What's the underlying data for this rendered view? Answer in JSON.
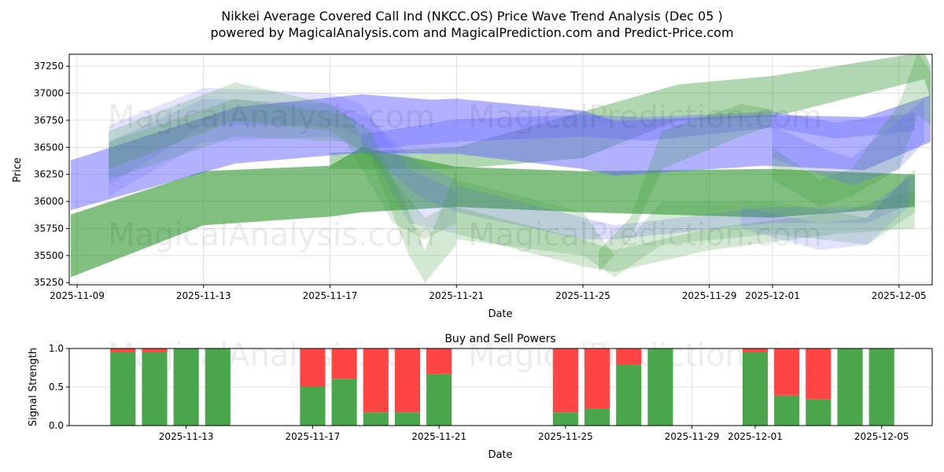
{
  "title_line1": "Nikkei Average Covered Call Ind (NKCC.OS) Price Wave Trend Analysis (Dec 05 )",
  "title_line2": "powered by MagicalAnalysis.com and MagicalPrediction.com and Predict-Price.com",
  "watermarks": [
    "MagicalAnalysis.com",
    "MagicalPrediction.com"
  ],
  "chart_data": [
    {
      "type": "area",
      "title": "",
      "xlabel": "Date",
      "ylabel": "Price",
      "ylim": [
        35230,
        37360
      ],
      "x_start_date": "2025-11-09",
      "xlim_days": [
        -0.25,
        27.05
      ],
      "yticks": [
        35250,
        35500,
        35750,
        36000,
        36250,
        36500,
        36750,
        37000,
        37250
      ],
      "xticks": [
        {
          "day": 0,
          "label": "2025-11-09"
        },
        {
          "day": 4,
          "label": "2025-11-13"
        },
        {
          "day": 8,
          "label": "2025-11-17"
        },
        {
          "day": 12,
          "label": "2025-11-21"
        },
        {
          "day": 16,
          "label": "2025-11-25"
        },
        {
          "day": 20,
          "label": "2025-11-29"
        },
        {
          "day": 22,
          "label": "2025-12-01"
        },
        {
          "day": 26,
          "label": "2025-12-05"
        }
      ],
      "grid": true,
      "colors": {
        "blue": "#6464ff",
        "green": "#3c9c3c"
      },
      "bands": [
        {
          "color": "green",
          "opacity": 0.4,
          "points": [
            [
              8,
              36300,
              36450
            ],
            [
              12,
              36300,
              36500
            ],
            [
              16,
              36400,
              36830
            ],
            [
              19,
              36750,
              37080
            ],
            [
              22,
              36780,
              37160
            ],
            [
              26.8,
              37130,
              37380
            ],
            [
              27,
              36950,
              37250
            ]
          ]
        },
        {
          "color": "green",
          "opacity": 0.65,
          "points": [
            [
              -0.2,
              35300,
              35880
            ],
            [
              4,
              35780,
              36280
            ],
            [
              8,
              35860,
              36330
            ],
            [
              9,
              35900,
              36500
            ],
            [
              12,
              35950,
              36320
            ],
            [
              16,
              35900,
              36280
            ],
            [
              22,
              35850,
              36300
            ],
            [
              26.5,
              35950,
              36250
            ]
          ]
        },
        {
          "color": "blue",
          "opacity": 0.5,
          "points": [
            [
              -0.2,
              35920,
              36380
            ],
            [
              5,
              36350,
              36870
            ],
            [
              9,
              36450,
              36990
            ],
            [
              11.2,
              36440,
              36940
            ],
            [
              12,
              36440,
              36950
            ],
            [
              16,
              36300,
              36840
            ],
            [
              17,
              36240,
              36745
            ],
            [
              21.7,
              36330,
              36800
            ],
            [
              24.9,
              36290,
              36780
            ],
            [
              27,
              36550,
              36980
            ]
          ]
        },
        {
          "color": "blue",
          "opacity": 0.35,
          "points": [
            [
              9,
              36480,
              36620
            ],
            [
              12,
              36550,
              36760
            ],
            [
              16,
              36600,
              36800
            ],
            [
              18,
              36560,
              36780
            ],
            [
              22,
              36680,
              36830
            ],
            [
              24,
              36580,
              36730
            ],
            [
              26.5,
              36650,
              36820
            ]
          ]
        },
        {
          "color": "blue",
          "opacity": 0.18,
          "points": [
            [
              1,
              36150,
              36700
            ],
            [
              4,
              36700,
              37050
            ],
            [
              8,
              36700,
              37000
            ],
            [
              9,
              36600,
              36900
            ],
            [
              10.5,
              35800,
              36300
            ],
            [
              12,
              35700,
              36100
            ]
          ]
        },
        {
          "color": "blue",
          "opacity": 0.18,
          "points": [
            [
              1,
              36050,
              36550
            ],
            [
              4,
              36550,
              36950
            ],
            [
              8,
              36600,
              36900
            ],
            [
              9.2,
              36450,
              36780
            ],
            [
              10.8,
              36050,
              36350
            ],
            [
              12,
              35900,
              36200
            ]
          ]
        },
        {
          "color": "green",
          "opacity": 0.22,
          "points": [
            [
              1,
              36300,
              36650
            ],
            [
              5,
              36750,
              37100
            ],
            [
              8,
              36650,
              36900
            ],
            [
              9.3,
              36400,
              36650
            ],
            [
              10.5,
              35500,
              35900
            ],
            [
              11,
              35250,
              35550
            ],
            [
              12,
              35600,
              36300
            ]
          ]
        },
        {
          "color": "green",
          "opacity": 0.2,
          "points": [
            [
              1,
              36200,
              36550
            ],
            [
              5,
              36600,
              36950
            ],
            [
              8.5,
              36550,
              36800
            ],
            [
              10,
              35800,
              36200
            ],
            [
              11,
              35650,
              35850
            ],
            [
              12,
              35800,
              36000
            ]
          ]
        },
        {
          "color": "blue",
          "opacity": 0.22,
          "points": [
            [
              12,
              35900,
              36150
            ],
            [
              16,
              35650,
              35850
            ],
            [
              17,
              35650,
              35780
            ],
            [
              22,
              35800,
              35950
            ],
            [
              25,
              35800,
              35950
            ],
            [
              26.5,
              36000,
              36250
            ]
          ]
        },
        {
          "color": "green",
          "opacity": 0.22,
          "points": [
            [
              12,
              35700,
              35950
            ],
            [
              16,
              35400,
              35650
            ],
            [
              17,
              35350,
              35550
            ],
            [
              20,
              35550,
              35750
            ],
            [
              24,
              35700,
              35900
            ],
            [
              26.5,
              35750,
              36100
            ]
          ]
        },
        {
          "color": "green",
          "opacity": 0.2,
          "points": [
            [
              12,
              35650,
              36200
            ],
            [
              16,
              35500,
              35900
            ],
            [
              17,
              35300,
              35500
            ],
            [
              18.5,
              35600,
              36000
            ],
            [
              22,
              35700,
              36000
            ],
            [
              25,
              35600,
              35850
            ],
            [
              26.5,
              35900,
              36300
            ]
          ]
        },
        {
          "color": "green",
          "opacity": 0.25,
          "points": [
            [
              16.5,
              35350,
              35550
            ],
            [
              17.5,
              35650,
              35850
            ],
            [
              18.5,
              36300,
              36650
            ],
            [
              21,
              36600,
              36900
            ],
            [
              22,
              36700,
              36850
            ]
          ]
        },
        {
          "color": "green",
          "opacity": 0.25,
          "points": [
            [
              22,
              36200,
              36500
            ],
            [
              23.5,
              35950,
              36200
            ],
            [
              24.5,
              36050,
              36300
            ],
            [
              26,
              36300,
              36900
            ],
            [
              26.6,
              36800,
              37380
            ],
            [
              27,
              36700,
              37200
            ]
          ]
        },
        {
          "color": "blue",
          "opacity": 0.25,
          "points": [
            [
              22,
              36400,
              36700
            ],
            [
              23.5,
              36250,
              36500
            ],
            [
              24.5,
              36150,
              36400
            ],
            [
              26,
              36300,
              36750
            ],
            [
              26.8,
              36550,
              36950
            ]
          ]
        },
        {
          "color": "blue",
          "opacity": 0.18,
          "points": [
            [
              21,
              35750,
              35950
            ],
            [
              23.5,
              35550,
              35800
            ],
            [
              25,
              35600,
              35850
            ],
            [
              26.3,
              35950,
              36250
            ]
          ]
        }
      ]
    },
    {
      "type": "bar",
      "title": "Buy and Sell Powers",
      "xlabel": "Date",
      "ylabel": "Signal Strength",
      "ylim": [
        0,
        1
      ],
      "yticks": [
        {
          "v": 0,
          "label": "0.0"
        },
        {
          "v": 0.5,
          "label": "0.5"
        },
        {
          "v": 1,
          "label": "1.0"
        }
      ],
      "x_start_date": "2025-11-09",
      "xlim_days": [
        0.3,
        27.6
      ],
      "xticks": [
        {
          "day": 4,
          "label": "2025-11-13"
        },
        {
          "day": 8,
          "label": "2025-11-17"
        },
        {
          "day": 12,
          "label": "2025-11-21"
        },
        {
          "day": 16,
          "label": "2025-11-25"
        },
        {
          "day": 20,
          "label": "2025-11-29"
        },
        {
          "day": 22,
          "label": "2025-12-01"
        },
        {
          "day": 26,
          "label": "2025-12-05"
        }
      ],
      "colors": {
        "buy": "#4aa64a",
        "sell": "#ff4444"
      },
      "bars": [
        {
          "date": "2025-11-11",
          "day": 2,
          "buy": 0.95
        },
        {
          "date": "2025-11-12",
          "day": 3,
          "buy": 0.95
        },
        {
          "date": "2025-11-13",
          "day": 4,
          "buy": 1.0
        },
        {
          "date": "2025-11-14",
          "day": 5,
          "buy": 1.0
        },
        {
          "date": "2025-11-17",
          "day": 8,
          "buy": 0.5
        },
        {
          "date": "2025-11-18",
          "day": 9,
          "buy": 0.61
        },
        {
          "date": "2025-11-19",
          "day": 10,
          "buy": 0.17
        },
        {
          "date": "2025-11-20",
          "day": 11,
          "buy": 0.17
        },
        {
          "date": "2025-11-21",
          "day": 12,
          "buy": 0.67
        },
        {
          "date": "2025-11-25",
          "day": 16,
          "buy": 0.17
        },
        {
          "date": "2025-11-26",
          "day": 17,
          "buy": 0.22
        },
        {
          "date": "2025-11-27",
          "day": 18,
          "buy": 0.79
        },
        {
          "date": "2025-11-28",
          "day": 19,
          "buy": 1.0
        },
        {
          "date": "2025-12-01",
          "day": 22,
          "buy": 0.95
        },
        {
          "date": "2025-12-02",
          "day": 23,
          "buy": 0.39
        },
        {
          "date": "2025-12-03",
          "day": 24,
          "buy": 0.34
        },
        {
          "date": "2025-12-04",
          "day": 25,
          "buy": 1.0
        },
        {
          "date": "2025-12-05",
          "day": 26,
          "buy": 1.0
        }
      ]
    }
  ]
}
